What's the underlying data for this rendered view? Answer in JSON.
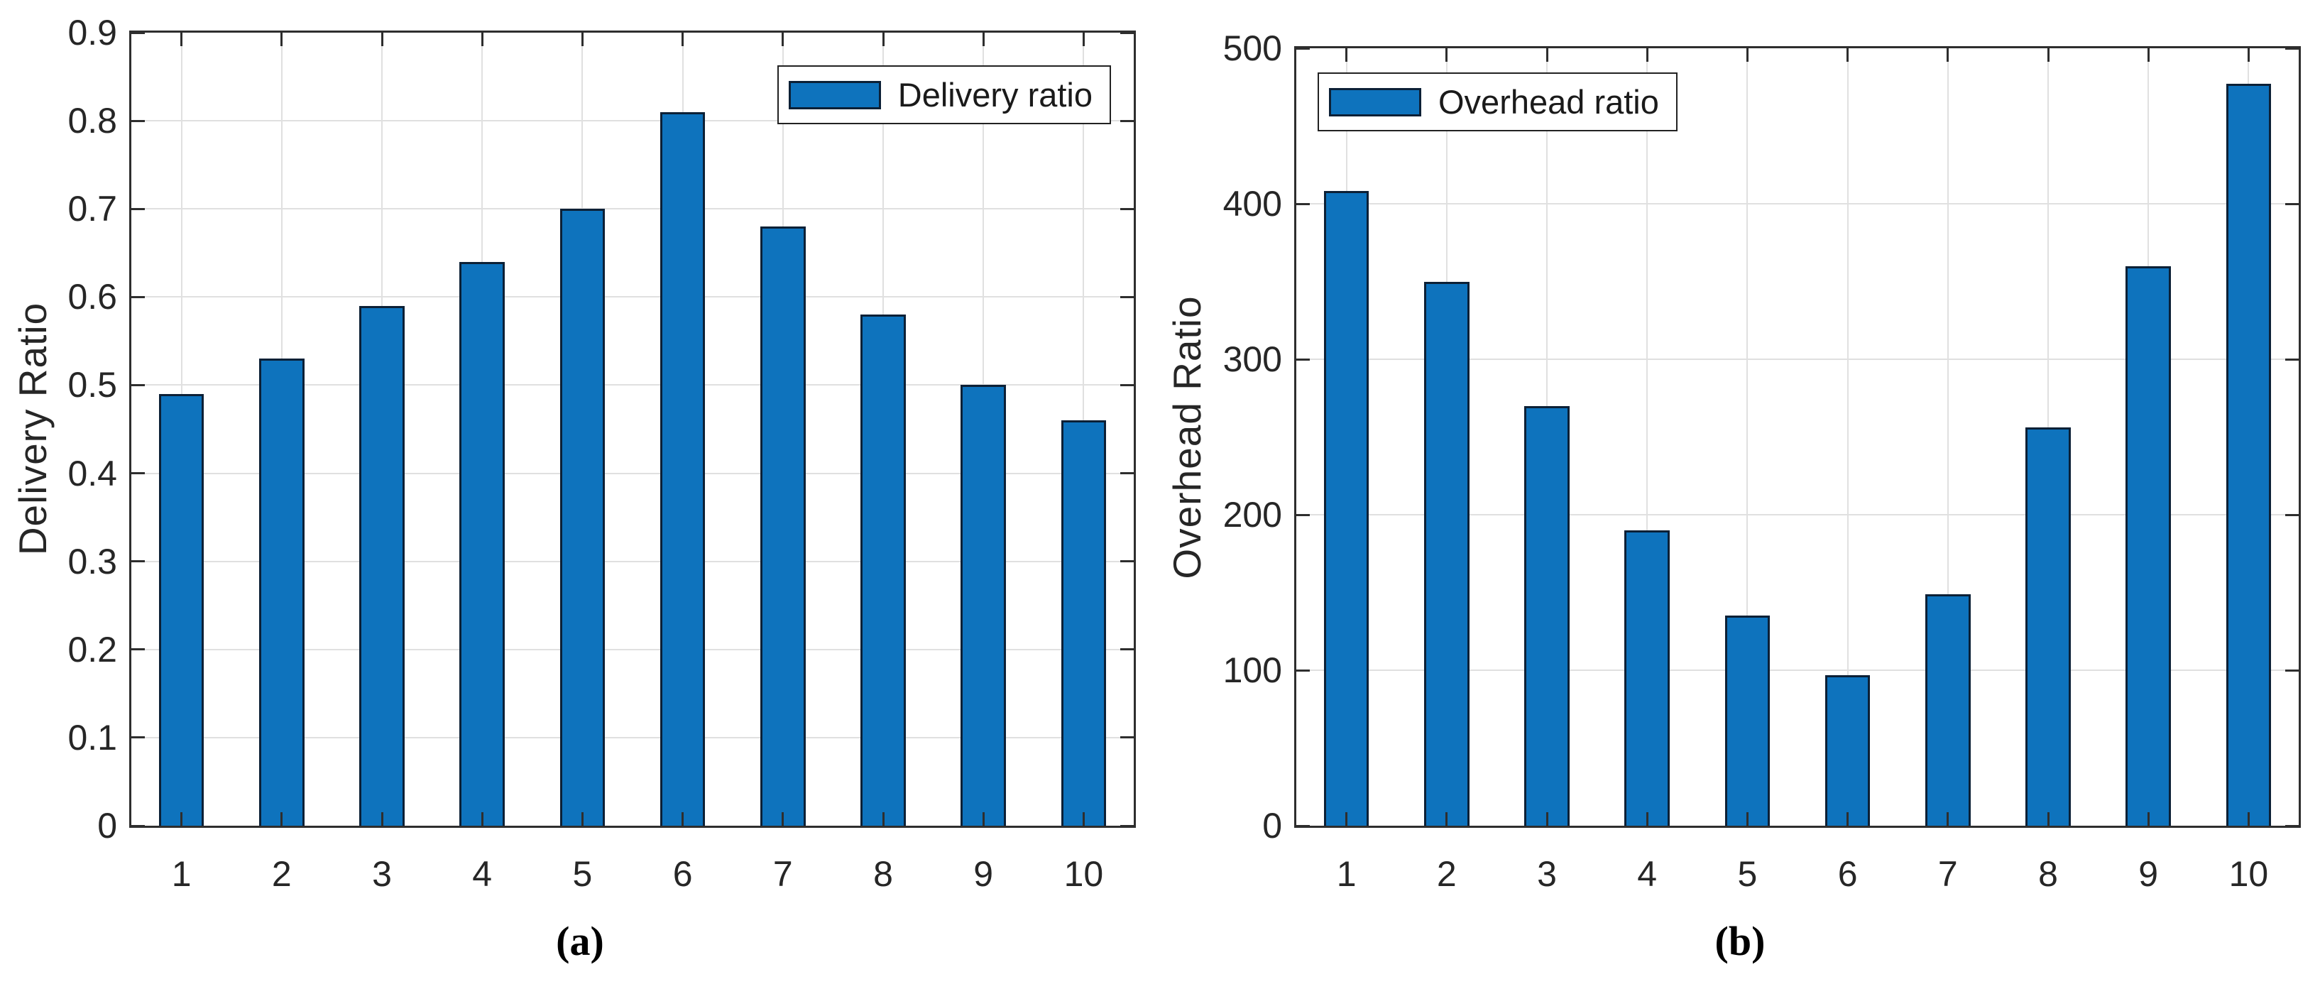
{
  "page": {
    "background": "#ffffff"
  },
  "colors": {
    "bar_fill": "#0e73bd",
    "bar_edge": "#0c2036",
    "grid": "#e0e0e0",
    "spine": "#2e2e2e",
    "text": "#262626"
  },
  "chart_data": [
    {
      "id": "delivery-ratio",
      "type": "bar",
      "caption": "(a)",
      "title": "",
      "xlabel": "",
      "ylabel": "Delivery Ratio",
      "legend": {
        "label": "Delivery ratio",
        "position": "top-right"
      },
      "categories": [
        "1",
        "2",
        "3",
        "4",
        "5",
        "6",
        "7",
        "8",
        "9",
        "10"
      ],
      "values": [
        0.49,
        0.53,
        0.59,
        0.64,
        0.7,
        0.81,
        0.68,
        0.58,
        0.5,
        0.46
      ],
      "ylim": [
        0,
        0.9
      ],
      "ytick_labels": [
        "0",
        "0.1",
        "0.2",
        "0.3",
        "0.4",
        "0.5",
        "0.6",
        "0.7",
        "0.8",
        "0.9"
      ],
      "grid": true,
      "bar_width_fraction": 0.45
    },
    {
      "id": "overhead-ratio",
      "type": "bar",
      "caption": "(b)",
      "title": "",
      "xlabel": "",
      "ylabel": "Overhead Ratio",
      "legend": {
        "label": "Overhead ratio",
        "position": "top-left"
      },
      "categories": [
        "1",
        "2",
        "3",
        "4",
        "5",
        "6",
        "7",
        "8",
        "9",
        "10"
      ],
      "values": [
        408,
        350,
        270,
        190,
        135,
        97,
        149,
        256,
        360,
        477
      ],
      "ylim": [
        0,
        500
      ],
      "ytick_labels": [
        "0",
        "100",
        "200",
        "300",
        "400",
        "500"
      ],
      "grid": true,
      "bar_width_fraction": 0.45
    }
  ]
}
